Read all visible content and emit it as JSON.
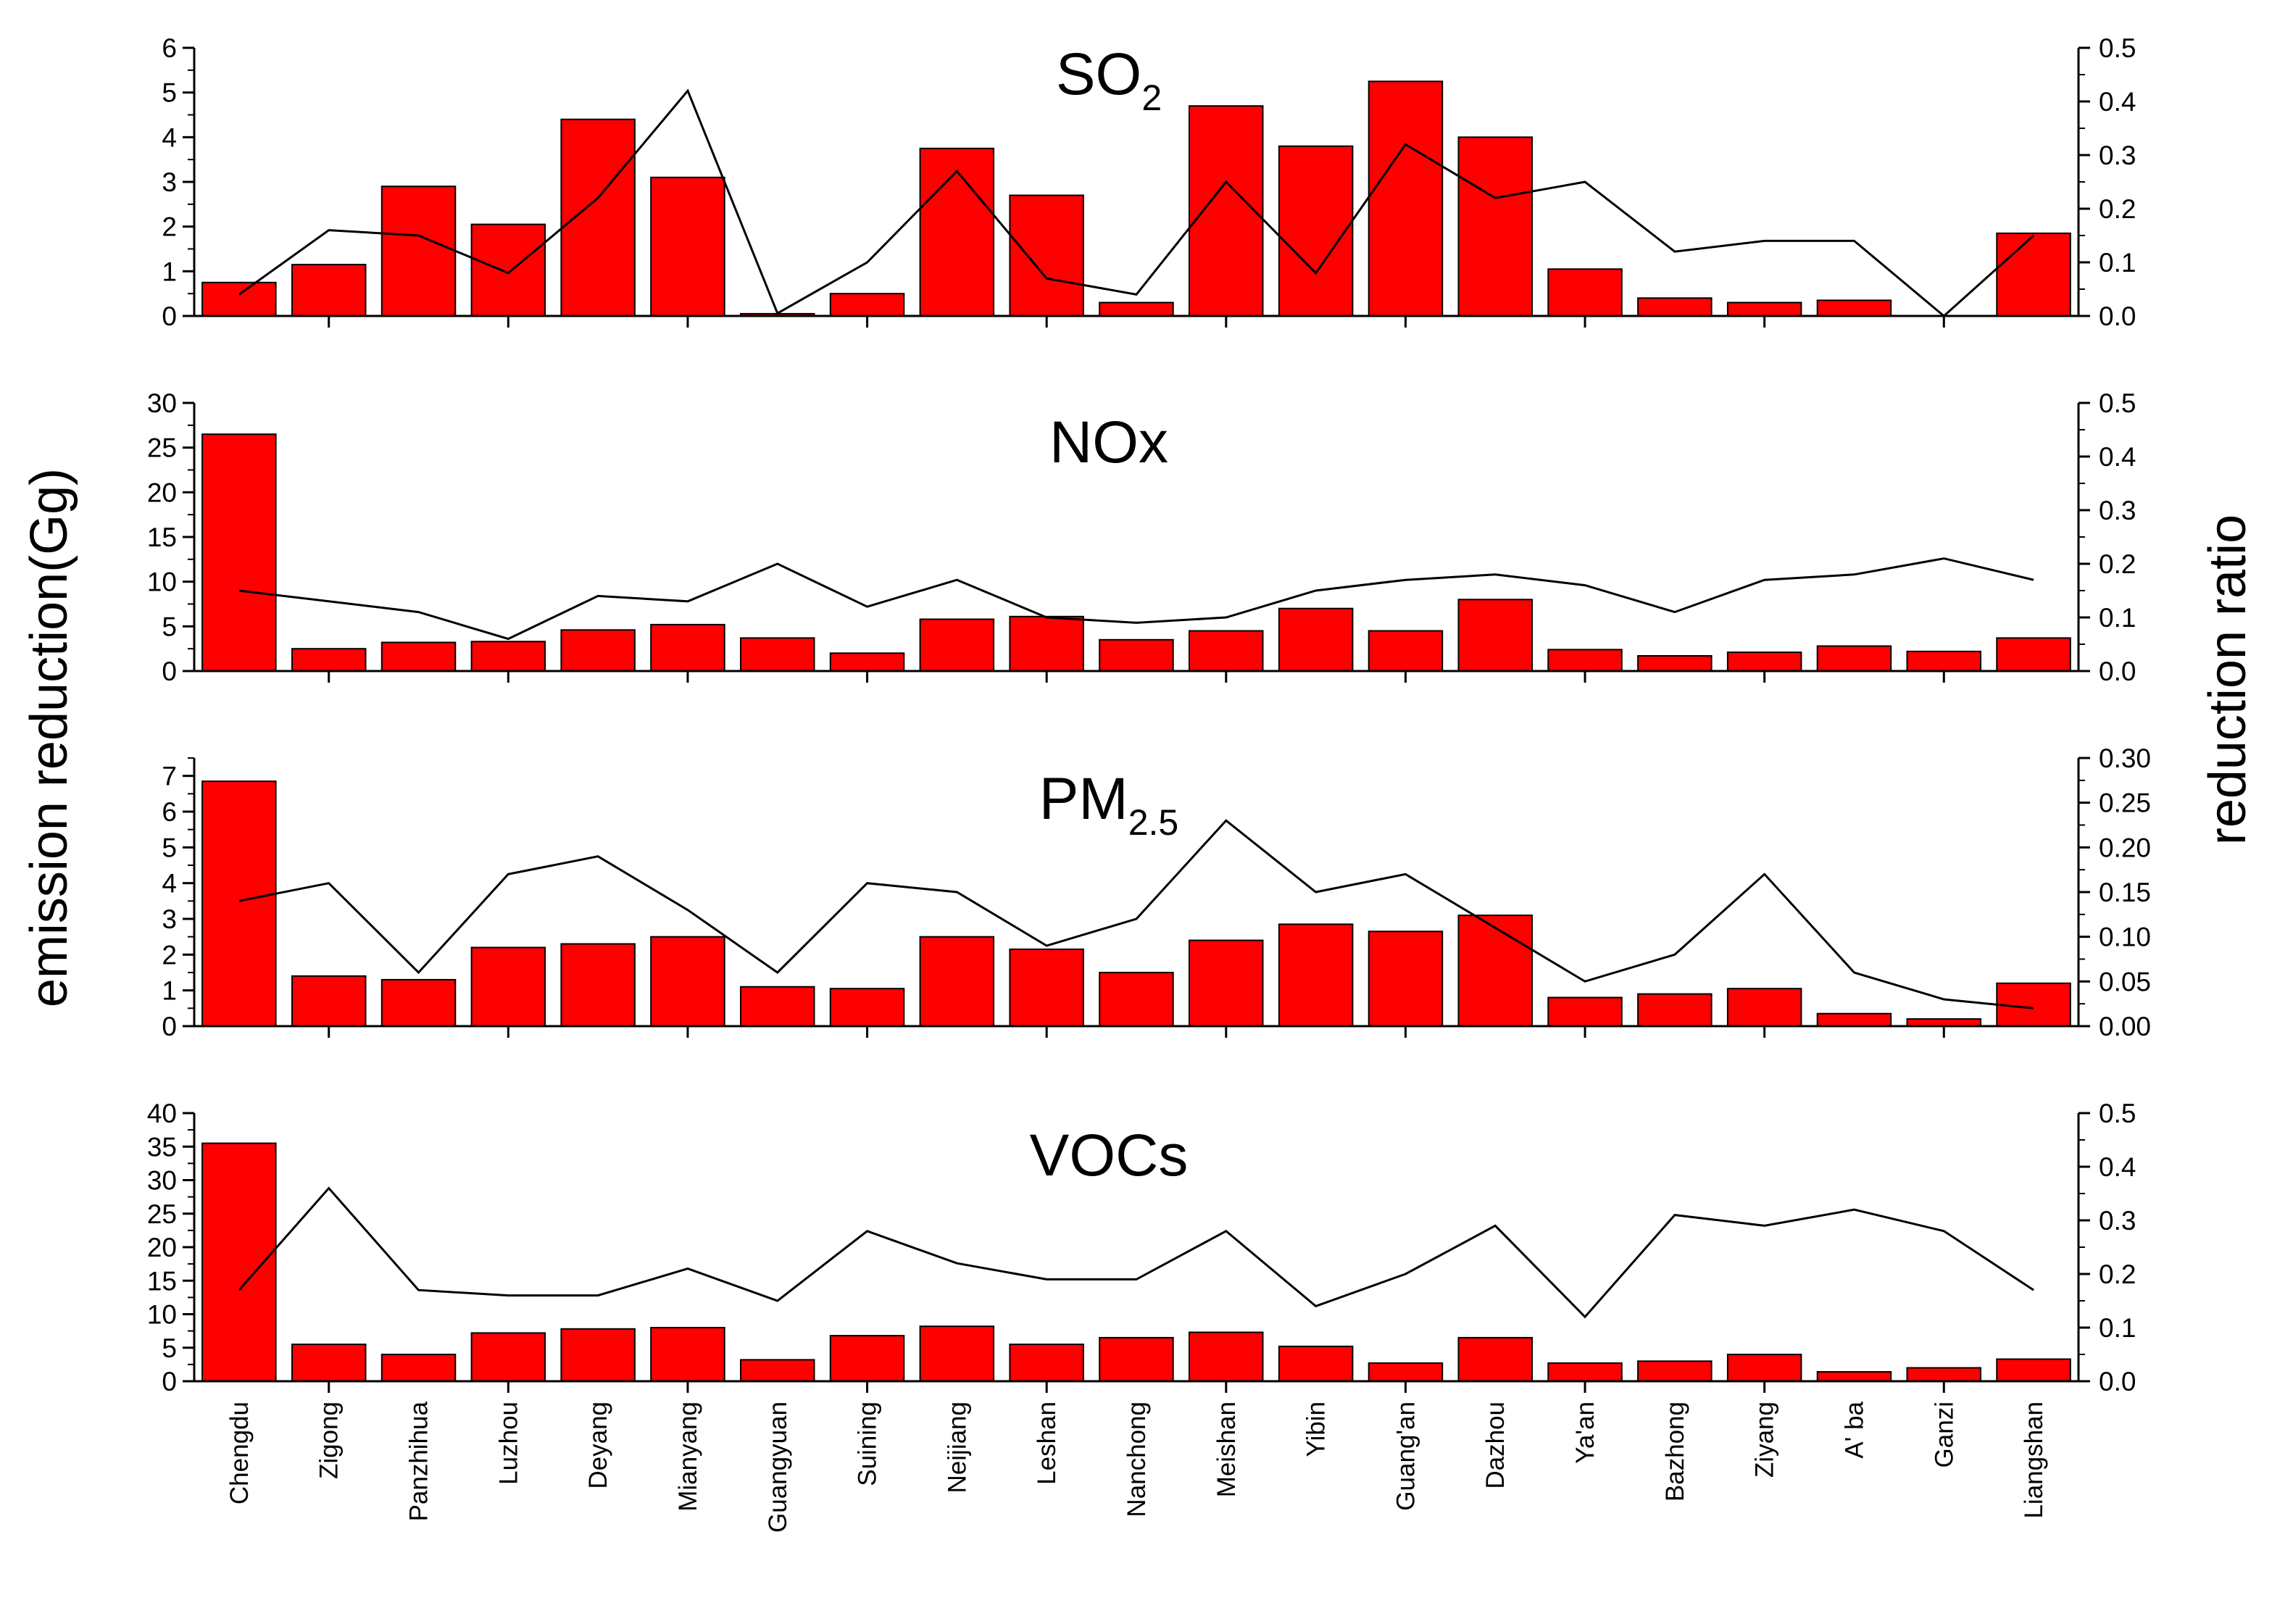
{
  "chart_data": {
    "type": "bar",
    "ylabel_left": "emission reduction(Gg)",
    "ylabel_right": "reduction ratio",
    "colors": {
      "bar": "#ff0000",
      "bar_edge": "#000000",
      "line": "#000000"
    },
    "categories": [
      "Chengdu",
      "Zigong",
      "Panzhihua",
      "Luzhou",
      "Deyang",
      "Mianyang",
      "Guangyuan",
      "Suining",
      "Neijiang",
      "Leshan",
      "Nanchong",
      "Meishan",
      "Yibin",
      "Guang'an",
      "Dazhou",
      "Ya'an",
      "Bazhong",
      "Ziyang",
      "A' ba",
      "Ganzi",
      "Liangshan"
    ],
    "panels": [
      {
        "title": "SO",
        "title_sub": "2",
        "left_ylim": [
          0,
          6
        ],
        "left_ticks": [
          "0",
          "1",
          "2",
          "3",
          "4",
          "5",
          "6"
        ],
        "right_ylim": [
          0,
          0.5
        ],
        "right_ticks": [
          "0.0",
          "0.1",
          "0.2",
          "0.3",
          "0.4",
          "0.5"
        ],
        "bars": [
          0.75,
          1.15,
          2.9,
          2.05,
          4.4,
          3.1,
          0.05,
          0.5,
          3.75,
          2.7,
          0.3,
          4.7,
          3.8,
          5.25,
          4.0,
          1.05,
          0.4,
          0.3,
          0.35,
          0.0,
          1.85
        ],
        "ratio": [
          0.04,
          0.16,
          0.15,
          0.08,
          0.22,
          0.42,
          0.005,
          0.1,
          0.27,
          0.07,
          0.04,
          0.25,
          0.08,
          0.32,
          0.22,
          0.25,
          0.12,
          0.14,
          0.14,
          0.0,
          0.15
        ]
      },
      {
        "title": "NOx",
        "title_sub": "",
        "left_ylim": [
          0,
          30
        ],
        "left_ticks": [
          "0",
          "5",
          "10",
          "15",
          "20",
          "25",
          "30"
        ],
        "right_ylim": [
          0,
          0.5
        ],
        "right_ticks": [
          "0.0",
          "0.1",
          "0.2",
          "0.3",
          "0.4",
          "0.5"
        ],
        "bars": [
          26.5,
          2.5,
          3.2,
          3.3,
          4.6,
          5.2,
          3.7,
          2.0,
          5.8,
          6.1,
          3.5,
          4.5,
          7.0,
          4.5,
          8.0,
          2.4,
          1.7,
          2.1,
          2.8,
          2.2,
          3.7
        ],
        "ratio": [
          0.15,
          0.13,
          0.11,
          0.06,
          0.14,
          0.13,
          0.2,
          0.12,
          0.17,
          0.1,
          0.09,
          0.1,
          0.15,
          0.17,
          0.18,
          0.16,
          0.11,
          0.17,
          0.18,
          0.21,
          0.17
        ]
      },
      {
        "title": "PM",
        "title_sub": "2.5",
        "left_ylim": [
          0,
          7.5
        ],
        "left_ticks": [
          "0",
          "1",
          "2",
          "3",
          "4",
          "5",
          "6",
          "7"
        ],
        "right_ylim": [
          0,
          0.3
        ],
        "right_ticks": [
          "0.00",
          "0.05",
          "0.10",
          "0.15",
          "0.20",
          "0.25",
          "0.30"
        ],
        "bars": [
          6.85,
          1.4,
          1.3,
          2.2,
          2.3,
          2.5,
          1.1,
          1.05,
          2.5,
          2.15,
          1.5,
          2.4,
          2.85,
          2.65,
          3.1,
          0.8,
          0.9,
          1.05,
          0.35,
          0.2,
          1.2
        ],
        "ratio": [
          0.14,
          0.16,
          0.06,
          0.17,
          0.19,
          0.13,
          0.06,
          0.16,
          0.15,
          0.09,
          0.12,
          0.23,
          0.15,
          0.17,
          0.11,
          0.05,
          0.08,
          0.17,
          0.06,
          0.03,
          0.02
        ]
      },
      {
        "title": "VOCs",
        "title_sub": "",
        "left_ylim": [
          0,
          40
        ],
        "left_ticks": [
          "0",
          "5",
          "10",
          "15",
          "20",
          "25",
          "30",
          "35",
          "40"
        ],
        "right_ylim": [
          0,
          0.5
        ],
        "right_ticks": [
          "0.0",
          "0.1",
          "0.2",
          "0.3",
          "0.4",
          "0.5"
        ],
        "bars": [
          35.5,
          5.5,
          4.0,
          7.2,
          7.8,
          8.0,
          3.2,
          6.8,
          8.2,
          5.5,
          6.5,
          7.3,
          5.2,
          2.7,
          6.5,
          2.7,
          3.0,
          4.0,
          1.4,
          2.0,
          3.3
        ],
        "ratio": [
          0.17,
          0.36,
          0.17,
          0.16,
          0.16,
          0.21,
          0.15,
          0.28,
          0.22,
          0.19,
          0.19,
          0.28,
          0.14,
          0.2,
          0.29,
          0.12,
          0.31,
          0.29,
          0.32,
          0.28,
          0.17
        ]
      }
    ]
  }
}
